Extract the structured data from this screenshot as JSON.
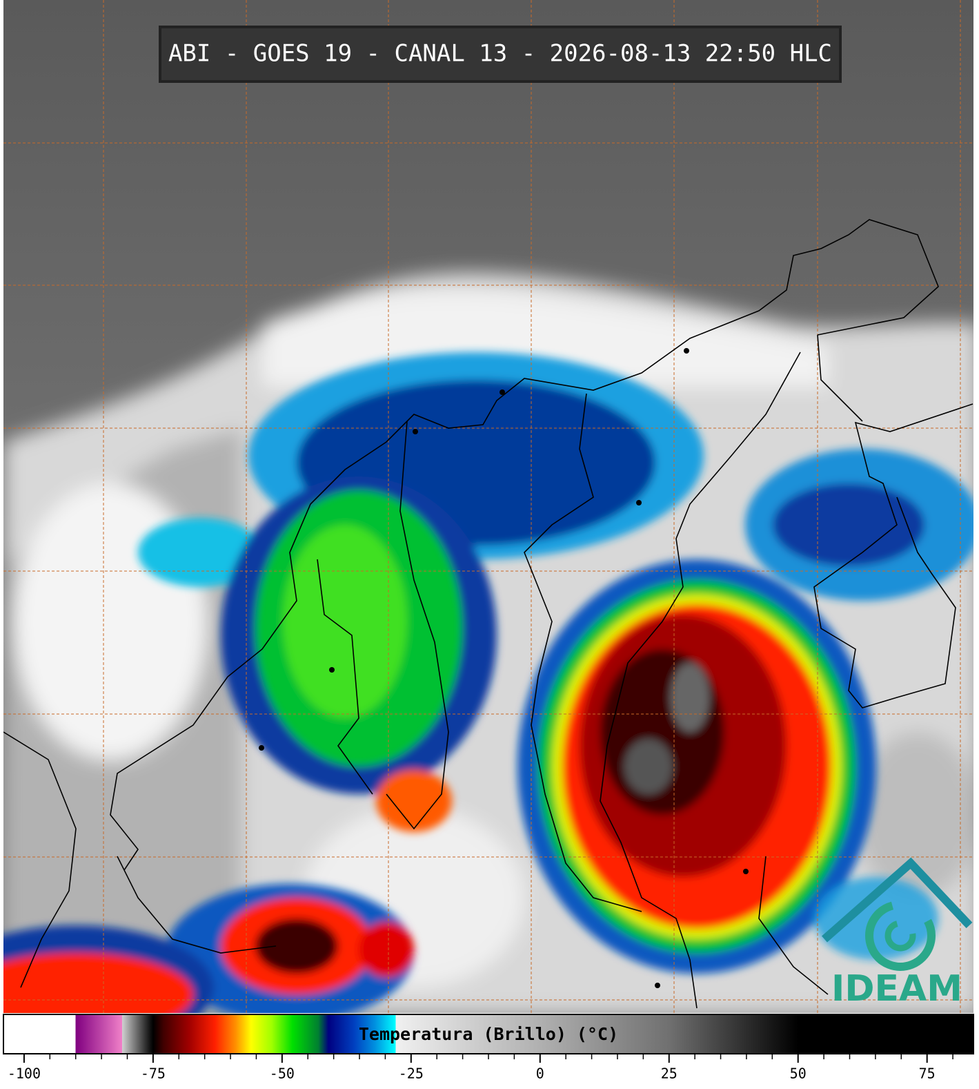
{
  "title": "ABI - GOES 19 - CANAL 13 - 2026-08-13 22:50 HLC",
  "colorbar": {
    "label": "Temperatura (Brillo) (°C)",
    "xlim": [
      -104,
      84
    ],
    "xticks": [
      -100,
      -75,
      -50,
      -25,
      0,
      25,
      50,
      75
    ],
    "minor_xticks": [
      -95,
      -90,
      -85,
      -80,
      -70,
      -65,
      -60,
      -55,
      -45,
      -40,
      -35,
      -30,
      -20,
      -15,
      -10,
      -5,
      5,
      10,
      15,
      20,
      30,
      35,
      40,
      45,
      55,
      60,
      65,
      70,
      80
    ],
    "colormap": [
      {
        "value": -104,
        "color": "#ffffff"
      },
      {
        "value": -90,
        "color": "#ffffff"
      },
      {
        "value": -90,
        "color": "#800080"
      },
      {
        "value": -81,
        "color": "#f080c8"
      },
      {
        "value": -81,
        "color": "#d0d0d0"
      },
      {
        "value": -76,
        "color": "#202020"
      },
      {
        "value": -75,
        "color": "#000000"
      },
      {
        "value": -73,
        "color": "#400000"
      },
      {
        "value": -68,
        "color": "#a00000"
      },
      {
        "value": -63,
        "color": "#ff2000"
      },
      {
        "value": -59,
        "color": "#ff9000"
      },
      {
        "value": -56,
        "color": "#ffff00"
      },
      {
        "value": -52,
        "color": "#a0ff00"
      },
      {
        "value": -48,
        "color": "#00e000"
      },
      {
        "value": -43,
        "color": "#008030"
      },
      {
        "value": -41,
        "color": "#000080"
      },
      {
        "value": -36,
        "color": "#0040c0"
      },
      {
        "value": -32,
        "color": "#0090e0"
      },
      {
        "value": -28,
        "color": "#00ffff"
      },
      {
        "value": -28,
        "color": "#f0f0f0"
      },
      {
        "value": 0,
        "color": "#b0b0b0"
      },
      {
        "value": 25,
        "color": "#707070"
      },
      {
        "value": 50,
        "color": "#000000"
      },
      {
        "value": 84,
        "color": "#000000"
      }
    ]
  },
  "logo": {
    "text": "IDEAM"
  }
}
